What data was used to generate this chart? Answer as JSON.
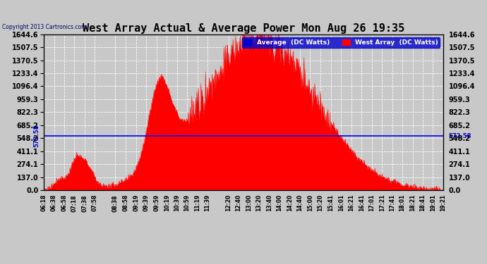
{
  "title": "West Array Actual & Average Power Mon Aug 26 19:35",
  "copyright": "Copyright 2013 Cartronics.com",
  "average_label": "Average  (DC Watts)",
  "west_label": "West Array  (DC Watts)",
  "average_value": 572.58,
  "ymax": 1644.6,
  "ymin": 0.0,
  "ytick_values": [
    0.0,
    137.0,
    274.1,
    411.1,
    548.2,
    685.2,
    822.3,
    959.3,
    1096.4,
    1233.4,
    1370.5,
    1507.5,
    1644.6
  ],
  "ytick_labels": [
    "0.0",
    "137.0",
    "274.1",
    "411.1",
    "548.2",
    "685.2",
    "822.3",
    "959.3",
    "1096.4",
    "1233.4",
    "1370.5",
    "1507.5",
    "1644.6"
  ],
  "background_color": "#c8c8c8",
  "plot_bg_color": "#c8c8c8",
  "grid_color": "#ffffff",
  "line_color": "#0000ff",
  "fill_color": "#ff0000",
  "title_color": "#000000",
  "avg_label_color": "#0000cc",
  "time_labels": [
    "06:18",
    "06:38",
    "06:58",
    "07:18",
    "07:38",
    "07:58",
    "08:38",
    "08:58",
    "09:19",
    "09:39",
    "09:59",
    "10:19",
    "10:39",
    "10:59",
    "11:19",
    "11:39",
    "12:20",
    "12:40",
    "13:00",
    "13:20",
    "13:40",
    "14:00",
    "14:20",
    "14:40",
    "15:00",
    "15:20",
    "15:41",
    "16:01",
    "16:21",
    "16:41",
    "17:01",
    "17:21",
    "17:41",
    "18:01",
    "18:21",
    "18:41",
    "19:01",
    "19:21"
  ],
  "start_time": "06:18",
  "end_time": "19:21"
}
